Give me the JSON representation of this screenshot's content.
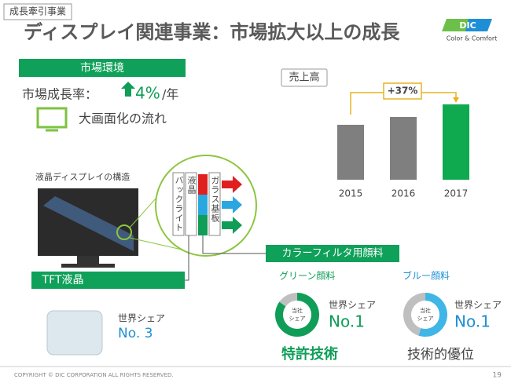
{
  "tag": "成長牽引事業",
  "title": "ディスプレイ関連事業：市場拡大以上の成長",
  "logo": {
    "mark": "DIC",
    "tagline": "Color & Comfort"
  },
  "market": {
    "heading": "市場環境",
    "growth_label": "市場成長率：",
    "growth_value": "4%",
    "growth_unit": "/年",
    "trend": "大画面化の流れ"
  },
  "structure": {
    "caption": "液晶ディスプレイの構造",
    "layers": [
      "バックライト",
      "液晶",
      "ガラス基板"
    ],
    "tft": "TFT液晶",
    "filter": "カラーフィルタ用顔料"
  },
  "glass": {
    "share_label": "世界シェア",
    "share_rank": "No. 3"
  },
  "green": {
    "name": "グリーン顔料",
    "share_label": "世界シェア",
    "share_rank": "No.1",
    "strength": "特許技術"
  },
  "blue": {
    "name": "ブルー顔料",
    "share_label": "世界シェア",
    "share_rank": "No.1",
    "strength": "技術的優位"
  },
  "footer": {
    "copyright": "COPYRIGHT © DIC CORPORATION ALL RIGHTS RESERVED.",
    "page": "19"
  },
  "chart_data": [
    {
      "type": "bar",
      "title": "売上高",
      "categories": [
        "2015",
        "2016",
        "2017"
      ],
      "values": [
        70,
        80,
        96
      ],
      "colors": [
        "#7f7f7f",
        "#7f7f7f",
        "#0faa4f"
      ],
      "annotation": "+37%"
    },
    {
      "type": "pie",
      "center_label": [
        "当社",
        "シェア"
      ],
      "values": [
        85,
        15
      ],
      "colors": [
        "#0f9d58",
        "#bfbfbf"
      ]
    },
    {
      "type": "pie",
      "center_label": [
        "当社",
        "シェア"
      ],
      "values": [
        55,
        45
      ],
      "colors": [
        "#3fb6e6",
        "#bfbfbf"
      ]
    }
  ]
}
